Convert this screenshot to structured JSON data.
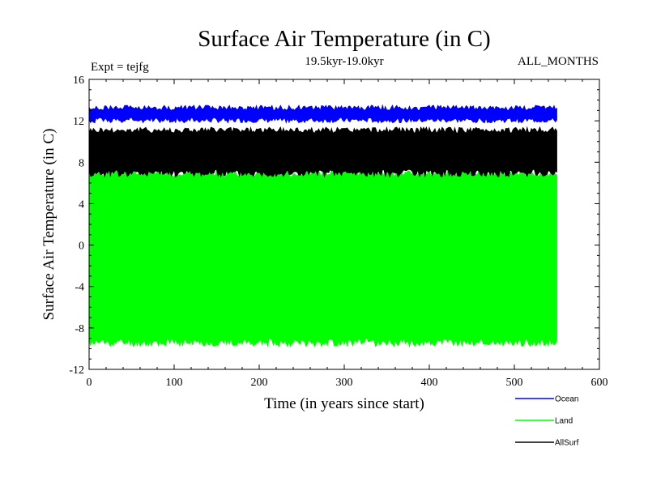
{
  "chart_data": {
    "type": "area",
    "title": "Surface Air Temperature (in C)",
    "subtitle": "19.5kyr-19.0kyr",
    "left_note": "Expt = tejfg",
    "right_note": "ALL_MONTHS",
    "xlabel": "Time (in years since start)",
    "ylabel": "Surface Air Temperature (in C)",
    "xlim": [
      0,
      600
    ],
    "ylim": [
      -12,
      16
    ],
    "x_ticks": [
      0,
      100,
      200,
      300,
      400,
      500,
      600
    ],
    "y_ticks": [
      -12,
      -8,
      -4,
      0,
      4,
      8,
      12,
      16
    ],
    "x_tick_labels": [
      "0",
      "100",
      "200",
      "300",
      "400",
      "500",
      "600"
    ],
    "y_tick_labels": [
      "-12",
      "-8",
      "-4",
      "0",
      "4",
      "8",
      "12",
      "16"
    ],
    "data_x_range": [
      0,
      550
    ],
    "series": [
      {
        "name": "Land",
        "color": "#00ff00",
        "band_min": [
          -9.8,
          -9.0
        ],
        "band_max": [
          6.6,
          7.3
        ]
      },
      {
        "name": "AllSurf",
        "color": "#000000",
        "band_min": [
          6.6,
          7.3
        ],
        "band_max": [
          10.8,
          11.4
        ]
      },
      {
        "name": "Ocean",
        "color": "#0000ff",
        "band_min": [
          11.8,
          12.3
        ],
        "band_max": [
          13.0,
          13.5
        ]
      }
    ],
    "legend": [
      {
        "name": "Ocean",
        "color": "#0000ff"
      },
      {
        "name": "Land",
        "color": "#00ff00"
      },
      {
        "name": "AllSurf",
        "color": "#000000"
      }
    ]
  }
}
